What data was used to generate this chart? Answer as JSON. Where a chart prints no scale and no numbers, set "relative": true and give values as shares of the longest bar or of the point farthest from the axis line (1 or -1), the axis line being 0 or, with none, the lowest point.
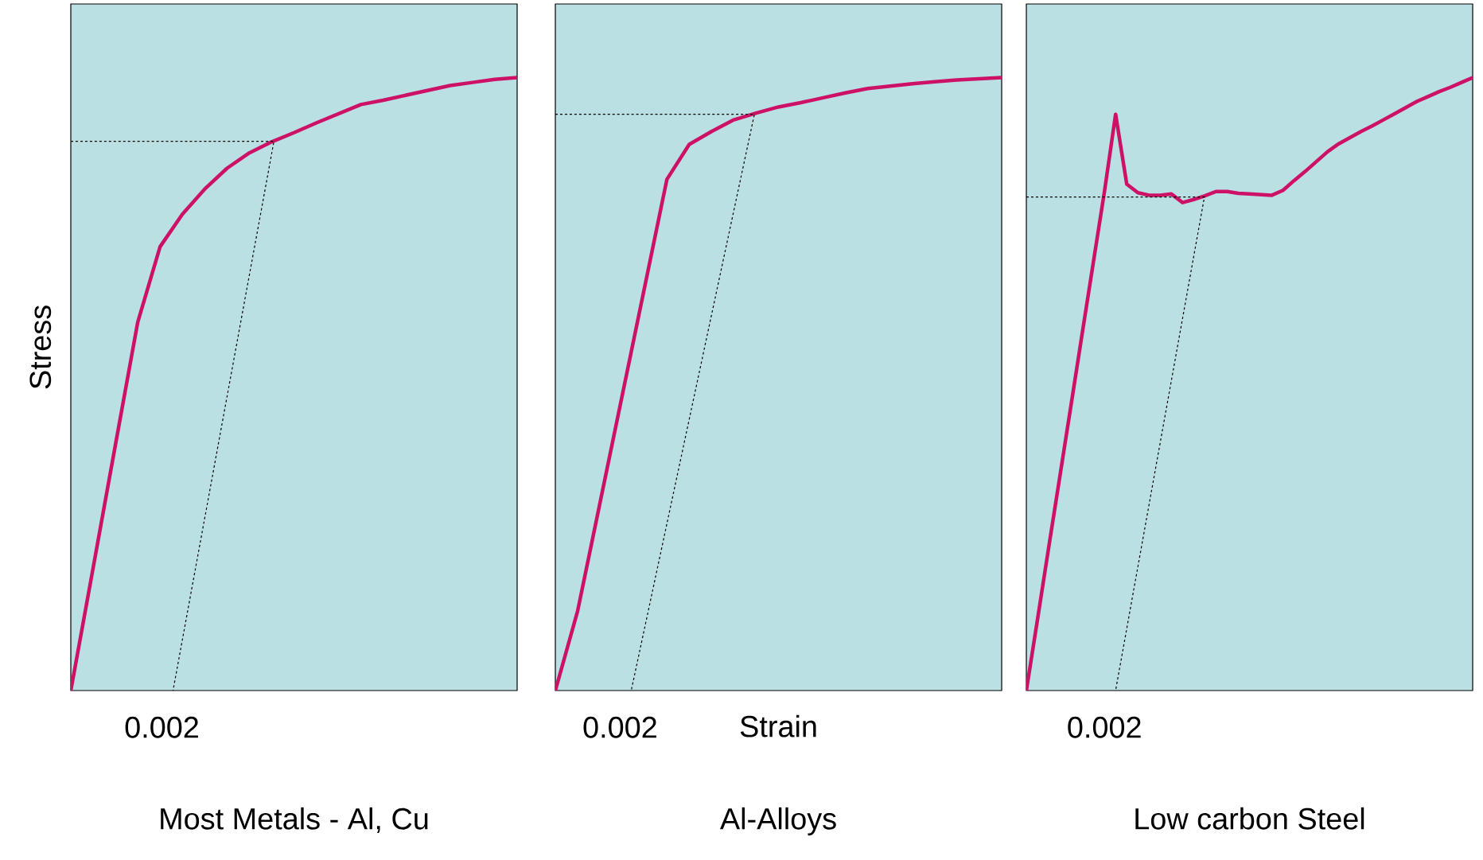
{
  "chart_data": [
    {
      "type": "line",
      "title": "Most Metals - Al, Cu",
      "ylabel": "Stress",
      "relative": true,
      "annotations": [
        "0.002"
      ],
      "categories": [
        null,
        null,
        null,
        null,
        null,
        null,
        null,
        null,
        null,
        null,
        null,
        null,
        null,
        null,
        null,
        null,
        null,
        null,
        null,
        null,
        null
      ],
      "series": [
        {
          "color": "#cc1166",
          "values": [
            0,
            0.2,
            0.401,
            0.601,
            0.724,
            0.777,
            0.818,
            0.852,
            0.877,
            0.895,
            0.91,
            0.926,
            0.941,
            0.956,
            0.963,
            0.971,
            0.979,
            0.987,
            0.992,
            0.997,
            1
          ]
        }
      ]
    },
    {
      "type": "line",
      "title": "Al-Alloys",
      "xlabel": "Strain",
      "relative": true,
      "annotations": [
        "0.002"
      ],
      "categories": [
        null,
        null,
        null,
        null,
        null,
        null,
        null,
        null,
        null,
        null,
        null,
        null,
        null,
        null,
        null,
        null,
        null,
        null,
        null,
        null,
        null
      ],
      "series": [
        {
          "color": "#cc1166",
          "values": [
            0,
            0.13,
            0.306,
            0.482,
            0.658,
            0.834,
            0.891,
            0.912,
            0.931,
            0.942,
            0.952,
            0.959,
            0.967,
            0.975,
            0.982,
            0.986,
            0.99,
            0.993,
            0.996,
            0.998,
            1
          ]
        }
      ]
    },
    {
      "type": "line",
      "title": "Low carbon Steel",
      "relative": true,
      "annotations": [
        "0.002"
      ],
      "categories": [
        null,
        null,
        null,
        null,
        null,
        null,
        null,
        null,
        null,
        null,
        null,
        null,
        null,
        null,
        null,
        null,
        null,
        null,
        null,
        null,
        null,
        null,
        null,
        null,
        null,
        null,
        null,
        null,
        null,
        null,
        null,
        null,
        null,
        null,
        null,
        null,
        null,
        null,
        null,
        null,
        null
      ],
      "series": [
        {
          "color": "#cc1166",
          "values": [
            0,
            0.116,
            0.233,
            0.349,
            0.465,
            0.582,
            0.698,
            0.814,
            0.94,
            0.826,
            0.812,
            0.808,
            0.808,
            0.81,
            0.796,
            0.801,
            0.807,
            0.814,
            0.814,
            0.811,
            0.81,
            0.809,
            0.808,
            0.816,
            0.832,
            0.847,
            0.863,
            0.879,
            0.892,
            0.902,
            0.912,
            0.921,
            0.931,
            0.941,
            0.951,
            0.961,
            0.969,
            0.977,
            0.984,
            0.992,
            1
          ]
        }
      ]
    }
  ]
}
